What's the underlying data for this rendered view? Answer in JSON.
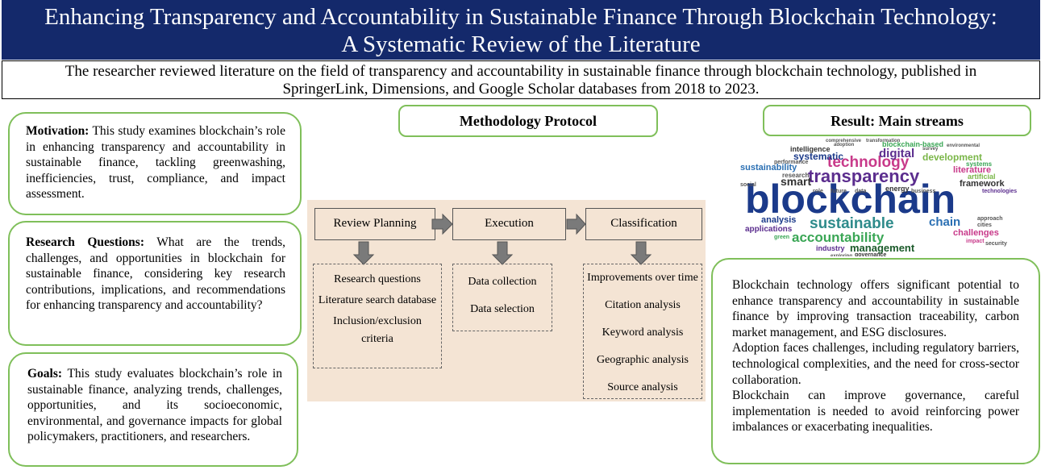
{
  "title": {
    "line1": "Enhancing Transparency and Accountability in Sustainable Finance Through Blockchain Technology:",
    "line2": "A Systematic Review of the Literature"
  },
  "subtitle": {
    "line1": "The researcher reviewed literature on the field of transparency and accountability in sustainable finance through blockchain technology, published in",
    "line2": "SpringerLink, Dimensions, and Google Scholar databases from 2018 to 2023."
  },
  "motivation": {
    "label": "Motivation:",
    "text": "This study examines blockchain’s role in enhancing transparency and accountability in sustainable finance, tackling greenwashing, inefficiencies, trust, compliance, and impact assessment."
  },
  "research_questions": {
    "label": "Research Questions:",
    "text": "What are the trends, challenges, and opportunities in blockchain for sustainable finance, considering key research contributions, implications, and recommendations for enhancing transparency and accountability?"
  },
  "goals": {
    "label": "Goals:",
    "text": "This study evaluates blockchain’s role in sustainable finance, analyzing trends, challenges, opportunities, and its socioeconomic, environmental, and governance impacts for global policymakers, practitioners, and researchers."
  },
  "methodology": {
    "header": "Methodology Protocol",
    "stages": [
      "Review Planning",
      "Execution",
      "Classification"
    ],
    "planning_items": [
      "Research questions",
      "Literature search database",
      "Inclusion/exclusion criteria"
    ],
    "execution_items": [
      "Data collection",
      "Data selection"
    ],
    "classification_items": [
      "Improvements over time",
      "Citation analysis",
      "Keyword analysis",
      "Geographic analysis",
      "Source analysis"
    ]
  },
  "result": {
    "header": "Result: Main streams",
    "paragraphs": [
      "Blockchain technology offers significant potential to enhance transparency and accountability in sustainable finance by improving transaction traceability, carbon market management, and ESG disclosures.",
      "Adoption faces challenges, including regulatory barriers, technological complexities, and the need for cross-sector collaboration.",
      "Blockchain can improve governance, careful implementation is needed to avoid reinforcing power imbalances or exacerbating inequalities."
    ]
  },
  "wordcloud": {
    "words": [
      "blockchain",
      "transparency",
      "technology",
      "sustainable",
      "accountability",
      "management",
      "sustainability",
      "smart",
      "digital",
      "systematic",
      "development",
      "chain",
      "analysis",
      "applications",
      "challenges",
      "literature",
      "framework",
      "intelligence",
      "research",
      "blockchain-based",
      "artificial",
      "energy",
      "industry",
      "systems",
      "future",
      "data",
      "business",
      "technologies",
      "approach",
      "green",
      "impact",
      "security",
      "governance",
      "performance",
      "adoption",
      "survey",
      "environmental",
      "transformation",
      "comprehensive",
      "cities",
      "social",
      "role",
      "exploring"
    ],
    "colors": [
      "#1b3a8a",
      "#5b2d8e",
      "#2e8b8b",
      "#3aa655",
      "#e0a21b",
      "#c83a8a",
      "#7ab648",
      "#2a6fb3"
    ]
  }
}
